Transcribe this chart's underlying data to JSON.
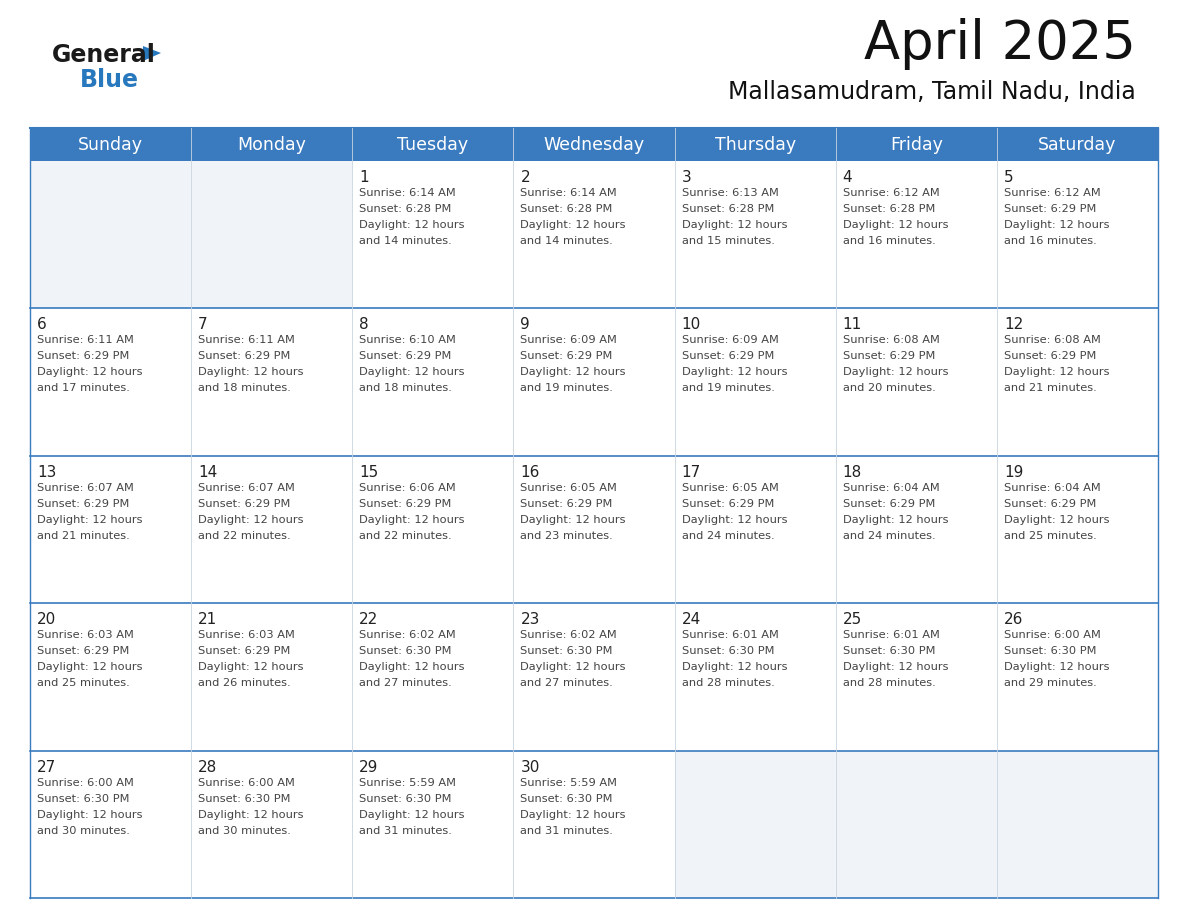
{
  "title": "April 2025",
  "subtitle": "Mallasamudram, Tamil Nadu, India",
  "header_color": "#3a7abf",
  "header_text_color": "#ffffff",
  "border_color": "#3a7abf",
  "cell_bg_white": "#ffffff",
  "cell_bg_gray": "#f0f4f8",
  "text_color": "#222222",
  "subtext_color": "#444444",
  "days_of_week": [
    "Sunday",
    "Monday",
    "Tuesday",
    "Wednesday",
    "Thursday",
    "Friday",
    "Saturday"
  ],
  "calendar_data": [
    [
      {
        "day": "",
        "sunrise": "",
        "sunset": "",
        "daylight": ""
      },
      {
        "day": "",
        "sunrise": "",
        "sunset": "",
        "daylight": ""
      },
      {
        "day": "1",
        "sunrise": "6:14 AM",
        "sunset": "6:28 PM",
        "daylight": "12 hours and 14 minutes."
      },
      {
        "day": "2",
        "sunrise": "6:14 AM",
        "sunset": "6:28 PM",
        "daylight": "12 hours and 14 minutes."
      },
      {
        "day": "3",
        "sunrise": "6:13 AM",
        "sunset": "6:28 PM",
        "daylight": "12 hours and 15 minutes."
      },
      {
        "day": "4",
        "sunrise": "6:12 AM",
        "sunset": "6:28 PM",
        "daylight": "12 hours and 16 minutes."
      },
      {
        "day": "5",
        "sunrise": "6:12 AM",
        "sunset": "6:29 PM",
        "daylight": "12 hours and 16 minutes."
      }
    ],
    [
      {
        "day": "6",
        "sunrise": "6:11 AM",
        "sunset": "6:29 PM",
        "daylight": "12 hours and 17 minutes."
      },
      {
        "day": "7",
        "sunrise": "6:11 AM",
        "sunset": "6:29 PM",
        "daylight": "12 hours and 18 minutes."
      },
      {
        "day": "8",
        "sunrise": "6:10 AM",
        "sunset": "6:29 PM",
        "daylight": "12 hours and 18 minutes."
      },
      {
        "day": "9",
        "sunrise": "6:09 AM",
        "sunset": "6:29 PM",
        "daylight": "12 hours and 19 minutes."
      },
      {
        "day": "10",
        "sunrise": "6:09 AM",
        "sunset": "6:29 PM",
        "daylight": "12 hours and 19 minutes."
      },
      {
        "day": "11",
        "sunrise": "6:08 AM",
        "sunset": "6:29 PM",
        "daylight": "12 hours and 20 minutes."
      },
      {
        "day": "12",
        "sunrise": "6:08 AM",
        "sunset": "6:29 PM",
        "daylight": "12 hours and 21 minutes."
      }
    ],
    [
      {
        "day": "13",
        "sunrise": "6:07 AM",
        "sunset": "6:29 PM",
        "daylight": "12 hours and 21 minutes."
      },
      {
        "day": "14",
        "sunrise": "6:07 AM",
        "sunset": "6:29 PM",
        "daylight": "12 hours and 22 minutes."
      },
      {
        "day": "15",
        "sunrise": "6:06 AM",
        "sunset": "6:29 PM",
        "daylight": "12 hours and 22 minutes."
      },
      {
        "day": "16",
        "sunrise": "6:05 AM",
        "sunset": "6:29 PM",
        "daylight": "12 hours and 23 minutes."
      },
      {
        "day": "17",
        "sunrise": "6:05 AM",
        "sunset": "6:29 PM",
        "daylight": "12 hours and 24 minutes."
      },
      {
        "day": "18",
        "sunrise": "6:04 AM",
        "sunset": "6:29 PM",
        "daylight": "12 hours and 24 minutes."
      },
      {
        "day": "19",
        "sunrise": "6:04 AM",
        "sunset": "6:29 PM",
        "daylight": "12 hours and 25 minutes."
      }
    ],
    [
      {
        "day": "20",
        "sunrise": "6:03 AM",
        "sunset": "6:29 PM",
        "daylight": "12 hours and 25 minutes."
      },
      {
        "day": "21",
        "sunrise": "6:03 AM",
        "sunset": "6:29 PM",
        "daylight": "12 hours and 26 minutes."
      },
      {
        "day": "22",
        "sunrise": "6:02 AM",
        "sunset": "6:30 PM",
        "daylight": "12 hours and 27 minutes."
      },
      {
        "day": "23",
        "sunrise": "6:02 AM",
        "sunset": "6:30 PM",
        "daylight": "12 hours and 27 minutes."
      },
      {
        "day": "24",
        "sunrise": "6:01 AM",
        "sunset": "6:30 PM",
        "daylight": "12 hours and 28 minutes."
      },
      {
        "day": "25",
        "sunrise": "6:01 AM",
        "sunset": "6:30 PM",
        "daylight": "12 hours and 28 minutes."
      },
      {
        "day": "26",
        "sunrise": "6:00 AM",
        "sunset": "6:30 PM",
        "daylight": "12 hours and 29 minutes."
      }
    ],
    [
      {
        "day": "27",
        "sunrise": "6:00 AM",
        "sunset": "6:30 PM",
        "daylight": "12 hours and 30 minutes."
      },
      {
        "day": "28",
        "sunrise": "6:00 AM",
        "sunset": "6:30 PM",
        "daylight": "12 hours and 30 minutes."
      },
      {
        "day": "29",
        "sunrise": "5:59 AM",
        "sunset": "6:30 PM",
        "daylight": "12 hours and 31 minutes."
      },
      {
        "day": "30",
        "sunrise": "5:59 AM",
        "sunset": "6:30 PM",
        "daylight": "12 hours and 31 minutes."
      },
      {
        "day": "",
        "sunrise": "",
        "sunset": "",
        "daylight": ""
      },
      {
        "day": "",
        "sunrise": "",
        "sunset": "",
        "daylight": ""
      },
      {
        "day": "",
        "sunrise": "",
        "sunset": "",
        "daylight": ""
      }
    ]
  ],
  "logo_color_general": "#1a1a1a",
  "logo_color_blue": "#2878be",
  "logo_triangle_color": "#2878be",
  "fig_width": 11.88,
  "fig_height": 9.18,
  "dpi": 100
}
